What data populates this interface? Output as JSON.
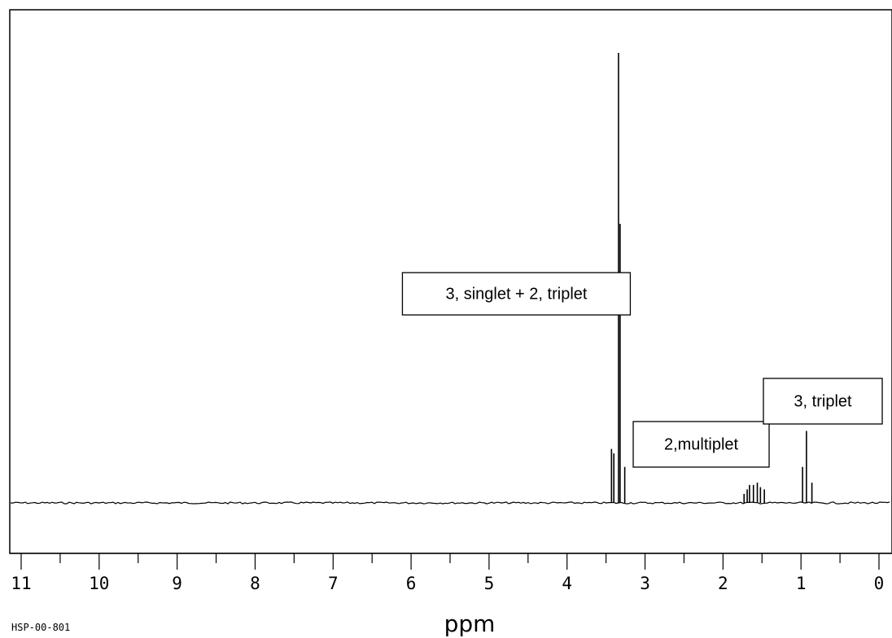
{
  "chart_data": {
    "type": "line",
    "title": "",
    "xlabel": "ppm",
    "ylabel": "",
    "xlim": [
      11,
      0
    ],
    "ylim": [
      0,
      1
    ],
    "x_reversed": true,
    "grid": false,
    "x_ticks": [
      "11",
      "10",
      "9",
      "8",
      "7",
      "6",
      "5",
      "4",
      "3",
      "2",
      "1",
      "0"
    ],
    "spectrum_code": "HSP-00-801",
    "peaks": [
      {
        "x": 3.43,
        "y": 0.12
      },
      {
        "x": 3.4,
        "y": 0.11
      },
      {
        "x": 3.34,
        "y": 1.0
      },
      {
        "x": 3.32,
        "y": 0.62
      },
      {
        "x": 3.26,
        "y": 0.08
      },
      {
        "x": 1.73,
        "y": 0.02
      },
      {
        "x": 1.69,
        "y": 0.03
      },
      {
        "x": 1.66,
        "y": 0.04
      },
      {
        "x": 1.61,
        "y": 0.04
      },
      {
        "x": 1.56,
        "y": 0.045
      },
      {
        "x": 1.52,
        "y": 0.035
      },
      {
        "x": 1.47,
        "y": 0.03
      },
      {
        "x": 0.98,
        "y": 0.08
      },
      {
        "x": 0.93,
        "y": 0.16
      },
      {
        "x": 0.86,
        "y": 0.045
      }
    ],
    "annotations": [
      {
        "text": "3, singlet + 2, triplet",
        "x": 4.65
      },
      {
        "text": "2,multiplet",
        "x": 2.28
      },
      {
        "text": "3, triplet",
        "x": 0.72
      }
    ]
  }
}
